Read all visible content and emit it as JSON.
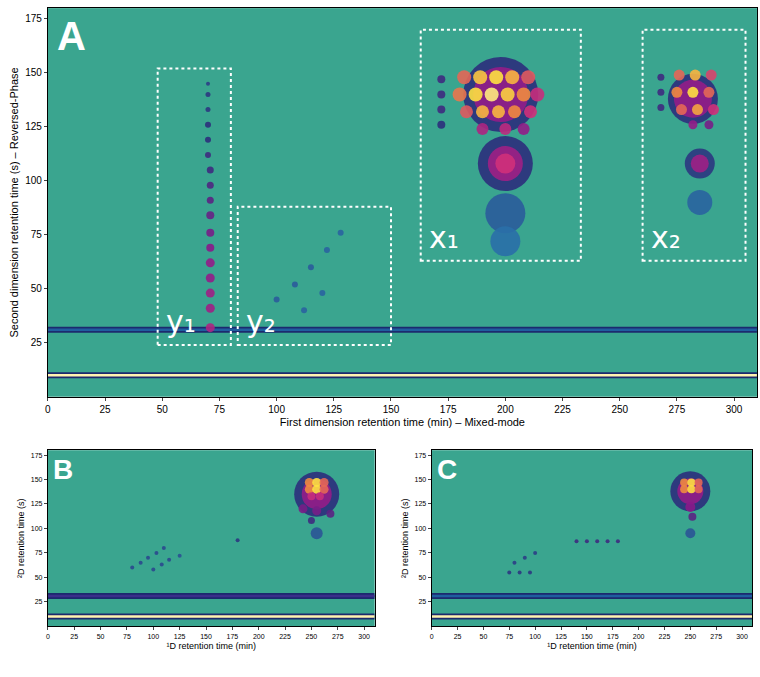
{
  "chart_data": [
    {
      "type": "scatter",
      "title": "A",
      "xlabel": "First dimension retention time (min) – Mixed-mode",
      "ylabel": "Second dimension retention time (s) – Reversed-Phase",
      "xlim": [
        0,
        310
      ],
      "xticks": [
        0,
        25,
        50,
        75,
        100,
        125,
        150,
        175,
        200,
        225,
        250,
        275,
        300
      ],
      "ylim": [
        0,
        180
      ],
      "yticks": [
        25,
        50,
        75,
        100,
        125,
        150,
        175
      ],
      "grid": false,
      "zlim": [
        0,
        1
      ],
      "baselines": [
        {
          "y": 10,
          "color": "#fff3b0"
        },
        {
          "y": 31,
          "color": "#1f5e9e"
        }
      ],
      "boxes": [
        {
          "label": "y₁",
          "x": [
            48,
            80
          ],
          "y": [
            24,
            152
          ]
        },
        {
          "label": "y₂",
          "x": [
            83,
            150
          ],
          "y": [
            24,
            88
          ]
        },
        {
          "label": "x₁",
          "x": [
            163,
            233
          ],
          "y": [
            63,
            170
          ]
        },
        {
          "label": "x₂",
          "x": [
            260,
            305
          ],
          "y": [
            63,
            170
          ]
        }
      ],
      "peaks": {
        "x": [
          198,
          200,
          200,
          200,
          198,
          200,
          200,
          172,
          172,
          172,
          172,
          182,
          189,
          196,
          203,
          210,
          180,
          187,
          194,
          201,
          208,
          214,
          183,
          190,
          197,
          204,
          211,
          190,
          200,
          208,
          282,
          285,
          285,
          282,
          285,
          268,
          268,
          268,
          276,
          283,
          290,
          275,
          282,
          289,
          277,
          284,
          291,
          282,
          289,
          71,
          71,
          71,
          71,
          71,
          71,
          71,
          71,
          71,
          71,
          71,
          70,
          70,
          70,
          70,
          70,
          70,
          100,
          108,
          115,
          122,
          128,
          112,
          120
        ],
        "y": [
          140,
          108,
          85,
          72,
          140,
          108,
          108,
          147,
          140,
          133,
          126,
          148,
          148,
          148,
          148,
          148,
          140,
          140,
          140,
          140,
          140,
          140,
          132,
          132,
          132,
          132,
          132,
          124,
          124,
          124,
          138,
          108,
          90,
          138,
          108,
          148,
          141,
          134,
          149,
          149,
          149,
          141,
          141,
          141,
          133,
          133,
          133,
          126,
          126,
          32,
          41,
          48,
          55,
          62,
          69,
          76,
          84,
          91,
          98,
          105,
          112,
          119,
          126,
          133,
          140,
          145,
          45,
          52,
          60,
          68,
          76,
          40,
          48
        ],
        "intensity": [
          0.42,
          0.42,
          0.3,
          0.25,
          0.6,
          0.62,
          0.72,
          0.45,
          0.45,
          0.45,
          0.42,
          0.8,
          0.92,
          0.95,
          0.9,
          0.78,
          0.82,
          0.95,
          0.97,
          0.93,
          0.85,
          0.7,
          0.78,
          0.9,
          0.9,
          0.85,
          0.72,
          0.65,
          0.68,
          0.6,
          0.42,
          0.4,
          0.28,
          0.6,
          0.62,
          0.45,
          0.45,
          0.45,
          0.8,
          0.9,
          0.75,
          0.85,
          0.95,
          0.8,
          0.8,
          0.88,
          0.72,
          0.6,
          0.55,
          0.65,
          0.62,
          0.62,
          0.6,
          0.6,
          0.58,
          0.55,
          0.52,
          0.5,
          0.48,
          0.45,
          0.45,
          0.42,
          0.42,
          0.4,
          0.4,
          0.38,
          0.3,
          0.3,
          0.3,
          0.28,
          0.28,
          0.28,
          0.28
        ],
        "size": [
          75,
          55,
          40,
          30,
          55,
          35,
          20,
          8,
          8,
          8,
          8,
          14,
          14,
          14,
          14,
          14,
          14,
          14,
          14,
          14,
          14,
          14,
          13,
          13,
          13,
          13,
          13,
          12,
          12,
          12,
          50,
          30,
          25,
          38,
          18,
          7,
          7,
          7,
          11,
          11,
          11,
          11,
          11,
          11,
          11,
          11,
          11,
          9,
          9,
          9,
          9,
          9,
          9,
          9,
          8,
          8,
          8,
          7,
          7,
          7,
          6,
          6,
          6,
          5,
          5,
          4,
          6,
          6,
          6,
          6,
          6,
          6,
          6
        ]
      }
    },
    {
      "type": "scatter",
      "title": "B",
      "xlabel": "¹D retention time (min)",
      "ylabel": "²D retention time (s)",
      "xlim": [
        0,
        310
      ],
      "xticks": [
        0,
        25,
        50,
        75,
        100,
        125,
        150,
        175,
        200,
        225,
        250,
        275,
        300
      ],
      "ylim": [
        0,
        180
      ],
      "yticks": [
        25,
        50,
        75,
        100,
        125,
        150,
        175
      ],
      "grid": false,
      "zlim": [
        0,
        1
      ],
      "baselines": [
        {
          "y": 10,
          "color": "#fff3b0"
        },
        {
          "y": 31,
          "color": "#3a2f8a"
        }
      ],
      "peaks": {
        "x": [
          255,
          255,
          248,
          255,
          262,
          248,
          255,
          262,
          250,
          258,
          242,
          255,
          268,
          250,
          255,
          80,
          88,
          95,
          103,
          110,
          100,
          108,
          115,
          125,
          180
        ],
        "y": [
          135,
          135,
          147,
          147,
          147,
          140,
          140,
          140,
          133,
          133,
          120,
          118,
          115,
          108,
          95,
          60,
          65,
          70,
          75,
          80,
          58,
          63,
          68,
          72,
          88
        ],
        "intensity": [
          0.42,
          0.6,
          0.85,
          0.95,
          0.8,
          0.85,
          0.95,
          0.8,
          0.7,
          0.7,
          0.55,
          0.55,
          0.5,
          0.45,
          0.32,
          0.35,
          0.35,
          0.35,
          0.35,
          0.35,
          0.35,
          0.35,
          0.35,
          0.33,
          0.4
        ],
        "size": [
          45,
          30,
          9,
          9,
          9,
          9,
          9,
          9,
          8,
          8,
          9,
          9,
          8,
          7,
          12,
          4,
          4,
          4,
          4,
          4,
          4,
          4,
          4,
          4,
          4
        ]
      }
    },
    {
      "type": "scatter",
      "title": "C",
      "xlabel": "¹D retention time (min)",
      "ylabel": "²D retention time (s)",
      "xlim": [
        0,
        310
      ],
      "xticks": [
        0,
        25,
        50,
        75,
        100,
        125,
        150,
        175,
        200,
        225,
        250,
        275,
        300
      ],
      "ylim": [
        0,
        180
      ],
      "yticks": [
        25,
        50,
        75,
        100,
        125,
        150,
        175
      ],
      "grid": false,
      "zlim": [
        0,
        1
      ],
      "baselines": [
        {
          "y": 10,
          "color": "#fff3b0"
        },
        {
          "y": 31,
          "color": "#1f5e9e"
        }
      ],
      "peaks": {
        "x": [
          250,
          250,
          244,
          251,
          258,
          244,
          251,
          258,
          250,
          252,
          250,
          140,
          150,
          160,
          170,
          180,
          75,
          85,
          95,
          80,
          90,
          100
        ],
        "y": [
          138,
          138,
          147,
          147,
          147,
          140,
          140,
          140,
          122,
          112,
          95,
          87,
          87,
          87,
          87,
          87,
          55,
          55,
          55,
          65,
          70,
          75
        ],
        "intensity": [
          0.42,
          0.6,
          0.85,
          0.95,
          0.8,
          0.85,
          0.95,
          0.8,
          0.58,
          0.5,
          0.32,
          0.45,
          0.45,
          0.45,
          0.45,
          0.45,
          0.4,
          0.4,
          0.4,
          0.38,
          0.38,
          0.38
        ],
        "size": [
          40,
          26,
          8,
          8,
          8,
          8,
          8,
          8,
          10,
          8,
          10,
          4,
          4,
          4,
          4,
          4,
          4,
          4,
          4,
          4,
          4,
          4
        ]
      }
    }
  ]
}
